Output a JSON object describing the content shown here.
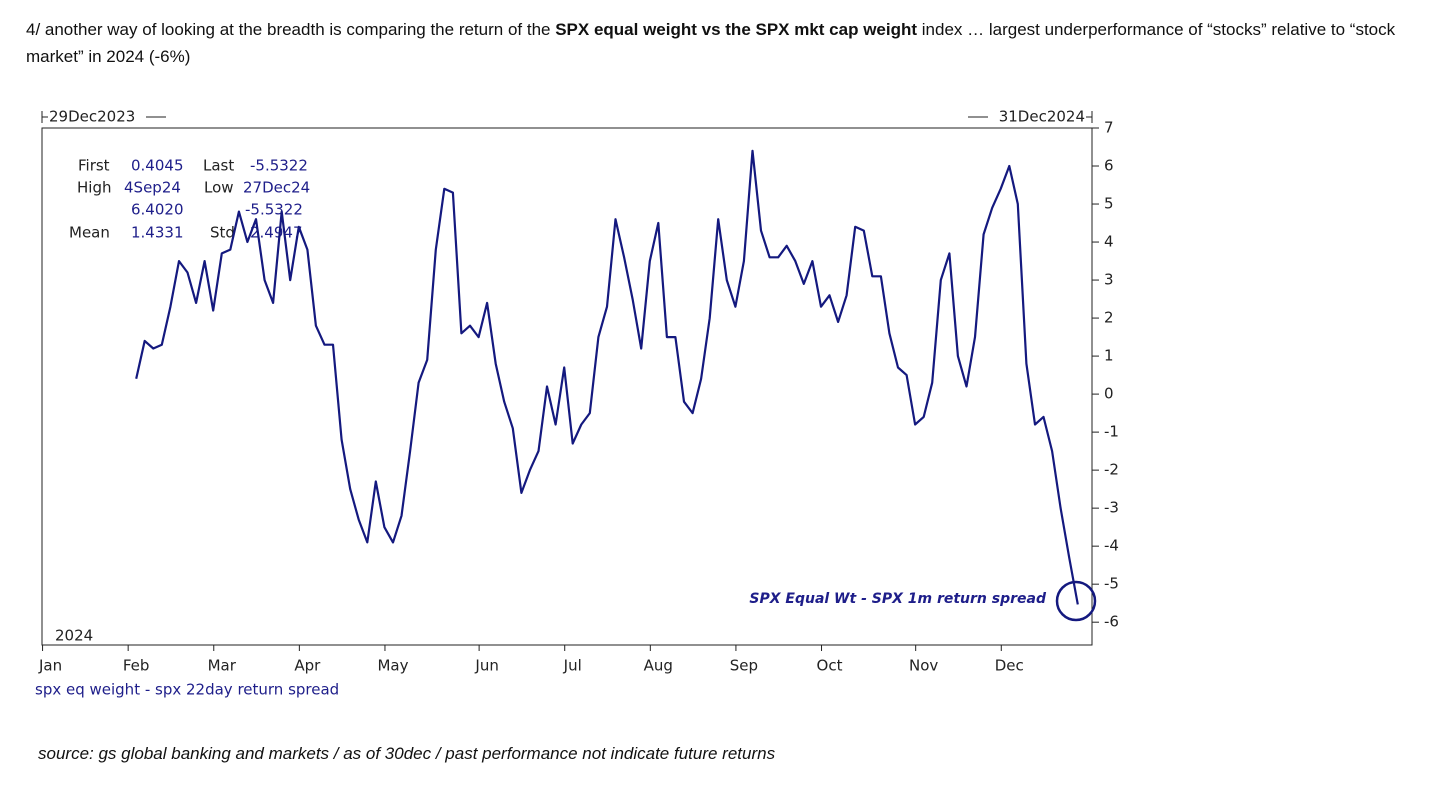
{
  "post": {
    "text": [
      {
        "text": "4/ another way of looking at the breadth is comparing the return of the "
      },
      {
        "text": "SPX equal weight vs the SPX mkt cap weight",
        "bold": true
      },
      {
        "text": " index … largest underperformance of “stocks” relative to “stock market” in 2024 (-6%)"
      }
    ],
    "source": "source: gs global banking and markets / as of 30dec / past performance not indicate future returns"
  },
  "chart_data": {
    "type": "line",
    "start_label": "29Dec2023",
    "end_label": "31Dec2024",
    "year_label": "2024",
    "annotation": "SPX Equal Wt - SPX 1m return spread",
    "stats": [
      [
        "First",
        "0.4045",
        "Last",
        "-5.5322"
      ],
      [
        "High",
        "4Sep24",
        "Low",
        "27Dec24"
      ],
      [
        "6.4020",
        "-5.5322"
      ],
      [
        "Mean",
        "1.4331",
        "Std",
        "2.4947"
      ]
    ],
    "categories": [
      null,
      "Jan",
      null,
      null,
      null,
      null,
      null,
      null,
      null,
      null,
      null,
      "Feb",
      null,
      null,
      null,
      null,
      null,
      null,
      null,
      null,
      null,
      "Mar",
      null,
      null,
      null,
      null,
      null,
      null,
      null,
      null,
      null,
      "Apr",
      null,
      null,
      null,
      null,
      null,
      null,
      null,
      null,
      null,
      "May",
      null,
      null,
      null,
      null,
      null,
      null,
      null,
      null,
      null,
      null,
      "Jun",
      null,
      null,
      null,
      null,
      null,
      null,
      null,
      null,
      null,
      "Jul",
      null,
      null,
      null,
      null,
      null,
      null,
      null,
      null,
      null,
      "Aug",
      null,
      null,
      null,
      null,
      null,
      null,
      null,
      null,
      null,
      "Sep",
      null,
      null,
      null,
      null,
      null,
      null,
      null,
      null,
      null,
      "Oct",
      null,
      null,
      null,
      null,
      null,
      null,
      null,
      null,
      null,
      null,
      "Nov",
      null,
      null,
      null,
      null,
      null,
      null,
      null,
      null,
      null,
      "Dec",
      null,
      null,
      null,
      null,
      null,
      null,
      null,
      null,
      null
    ],
    "series": [
      {
        "name": "spx eq weight - spx 22day return spread",
        "color": "#14197f",
        "values": [
          null,
          null,
          null,
          null,
          null,
          null,
          null,
          null,
          null,
          null,
          null,
          0.4045,
          1.4,
          1.2,
          1.3,
          2.3,
          3.5,
          3.2,
          2.4,
          3.5,
          2.2,
          3.7,
          3.8,
          4.8,
          4.0,
          4.6,
          3.0,
          2.4,
          4.8,
          3.0,
          4.4,
          3.8,
          1.8,
          1.3,
          1.3,
          -1.2,
          -2.5,
          -3.3,
          -3.9,
          -2.3,
          -3.5,
          -3.9,
          -3.2,
          -1.5,
          0.3,
          0.9,
          3.8,
          5.4,
          5.3,
          1.6,
          1.8,
          1.5,
          2.4,
          0.8,
          -0.2,
          -0.9,
          -2.6,
          -2,
          -1.5,
          0.2,
          -0.8,
          0.7,
          -1.3,
          -0.8,
          -0.5,
          1.5,
          2.3,
          4.6,
          3.6,
          2.5,
          1.2,
          3.5,
          4.5,
          1.5,
          1.5,
          -0.2,
          -0.5,
          0.4,
          2,
          4.6,
          3,
          2.3,
          3.5,
          6.4,
          4.3,
          3.6,
          3.6,
          3.9,
          3.5,
          2.9,
          3.5,
          2.3,
          2.6,
          1.9,
          2.6,
          4.4,
          4.3,
          3.1,
          3.1,
          1.6,
          0.7,
          0.5,
          -0.8,
          -0.6,
          0.3,
          3.0,
          3.7,
          1.0,
          0.2,
          1.5,
          4.2,
          4.9,
          5.4,
          6.0,
          5.0,
          0.8,
          -0.8,
          -0.6,
          -1.5,
          -3.0,
          -4.3,
          -5.5322,
          null
        ]
      }
    ],
    "ylim": [
      -6.6,
      7
    ],
    "yticks": [
      -6,
      -5,
      -4,
      -3,
      -2,
      -1,
      0,
      1,
      2,
      3,
      4,
      5,
      6,
      7
    ]
  }
}
